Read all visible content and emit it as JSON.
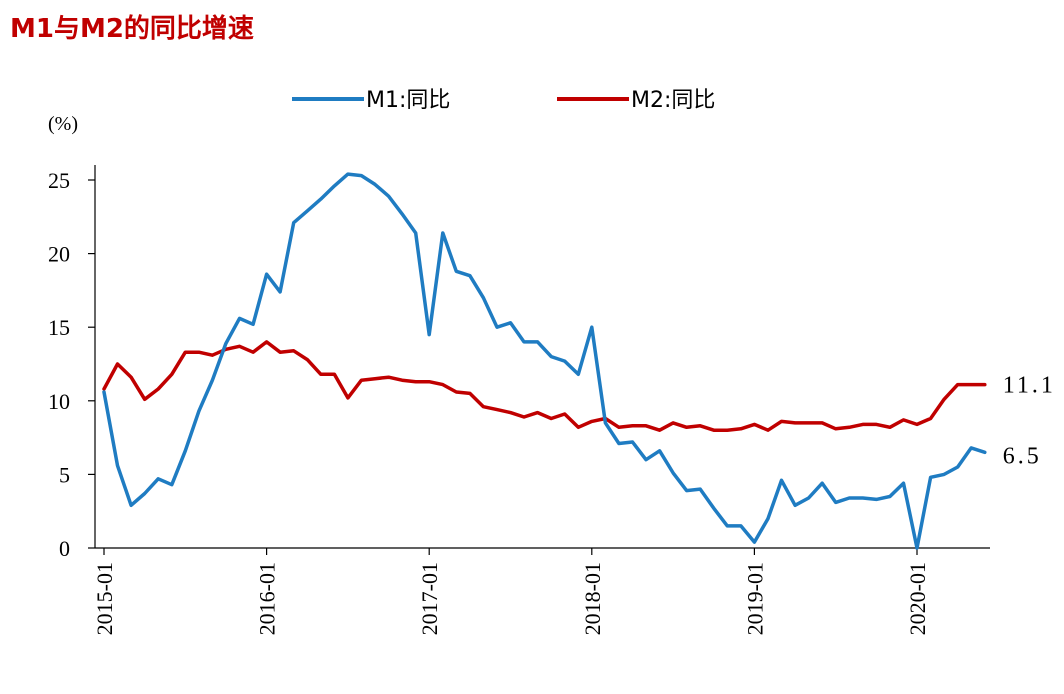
{
  "chart_data": {
    "type": "line",
    "title": "M1与M2的同比增速",
    "ylabel": "(%)",
    "xlabel": "",
    "ylim": [
      0,
      25
    ],
    "yticks": [
      0,
      5,
      10,
      15,
      20,
      25
    ],
    "xticks": [
      "2015-01",
      "2016-01",
      "2017-01",
      "2018-01",
      "2019-01",
      "2020-01"
    ],
    "x_start": "2015-01",
    "legend_position": "top-center",
    "grid": false,
    "series": [
      {
        "name": "M1:同比",
        "color": "#1f7cc2",
        "end_label": "6.5",
        "values": [
          10.6,
          5.6,
          2.9,
          3.7,
          4.7,
          4.3,
          6.6,
          9.3,
          11.4,
          13.9,
          15.6,
          15.2,
          18.6,
          17.4,
          22.1,
          22.9,
          23.7,
          24.6,
          25.4,
          25.3,
          24.7,
          23.9,
          22.7,
          21.4,
          14.5,
          21.4,
          18.8,
          18.5,
          17.0,
          15.0,
          15.3,
          14.0,
          14.0,
          13.0,
          12.7,
          11.8,
          15.0,
          8.5,
          7.1,
          7.2,
          6.0,
          6.6,
          5.1,
          3.9,
          4.0,
          2.7,
          1.5,
          1.5,
          0.4,
          2.0,
          4.6,
          2.9,
          3.4,
          4.4,
          3.1,
          3.4,
          3.4,
          3.3,
          3.5,
          4.4,
          0.0,
          4.8,
          5.0,
          5.5,
          6.8,
          6.5
        ]
      },
      {
        "name": "M2:同比",
        "color": "#c00000",
        "end_label": "11.1",
        "values": [
          10.8,
          12.5,
          11.6,
          10.1,
          10.8,
          11.8,
          13.3,
          13.3,
          13.1,
          13.5,
          13.7,
          13.3,
          14.0,
          13.3,
          13.4,
          12.8,
          11.8,
          11.8,
          10.2,
          11.4,
          11.5,
          11.6,
          11.4,
          11.3,
          11.3,
          11.1,
          10.6,
          10.5,
          9.6,
          9.4,
          9.2,
          8.9,
          9.2,
          8.8,
          9.1,
          8.2,
          8.6,
          8.8,
          8.2,
          8.3,
          8.3,
          8.0,
          8.5,
          8.2,
          8.3,
          8.0,
          8.0,
          8.1,
          8.4,
          8.0,
          8.6,
          8.5,
          8.5,
          8.5,
          8.1,
          8.2,
          8.4,
          8.4,
          8.2,
          8.7,
          8.4,
          8.8,
          10.1,
          11.1,
          11.1,
          11.1
        ]
      }
    ]
  }
}
